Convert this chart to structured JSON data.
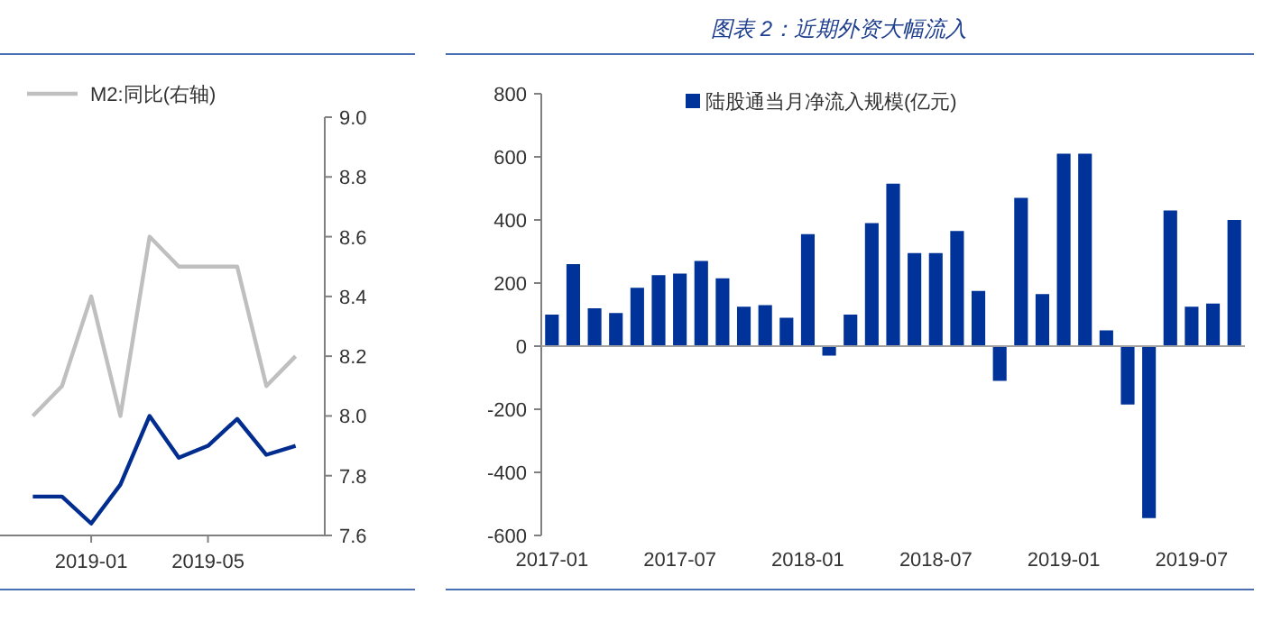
{
  "chart_data": [
    {
      "type": "line",
      "x": [
        "2018-11",
        "2018-12",
        "2019-01",
        "2019-02",
        "2019-03",
        "2019-04",
        "2019-05",
        "2019-06",
        "2019-07",
        "2019-08"
      ],
      "series": [
        {
          "name": "M2:同比(右轴)",
          "color": "#bfbfbf",
          "axis": "y2",
          "values": [
            8.0,
            8.1,
            8.4,
            8.0,
            8.6,
            8.5,
            8.5,
            8.5,
            8.1,
            8.2
          ]
        },
        {
          "color": "#002d8f",
          "axis": "y2",
          "values": [
            7.73,
            7.73,
            7.64,
            7.77,
            8.0,
            7.86,
            7.9,
            7.99,
            7.87,
            7.9
          ]
        }
      ],
      "xlim": [
        "2018-10",
        "2019-09"
      ],
      "xticks": [
        {
          "value": "2019-01",
          "label": "2019-01"
        },
        {
          "value": "2019-05",
          "label": "2019-05"
        }
      ],
      "y2lim": [
        7.6,
        9.0
      ],
      "y2ticks": [
        7.6,
        7.8,
        {
          "value": 8,
          "label": "8.0"
        },
        8.2,
        8.4,
        8.6,
        8.8,
        {
          "value": 9,
          "label": "9.0"
        }
      ],
      "legend": "top",
      "line_style": "solid"
    },
    {
      "type": "bar",
      "title": "图表 2：近期外资大幅流入",
      "categories": [
        "2017-01",
        null,
        null,
        null,
        null,
        null,
        "2017-07",
        null,
        null,
        null,
        null,
        null,
        "2018-01",
        null,
        null,
        null,
        null,
        null,
        "2018-07",
        null,
        null,
        null,
        null,
        null,
        "2019-01",
        null,
        null,
        null,
        null,
        null,
        "2019-07",
        null,
        null
      ],
      "series": [
        {
          "name": "陆股通当月净流入规模(亿元)",
          "color": "#003399",
          "values": [
            100,
            260,
            120,
            105,
            185,
            225,
            230,
            270,
            215,
            125,
            130,
            90,
            355,
            -30,
            100,
            390,
            515,
            295,
            295,
            365,
            175,
            -110,
            470,
            165,
            610,
            610,
            50,
            -185,
            -545,
            430,
            125,
            135,
            400
          ]
        }
      ],
      "ylim": [
        -600,
        800
      ],
      "yticks": [
        -600,
        -400,
        -200,
        0,
        200,
        400,
        600,
        800
      ],
      "legend": "top"
    }
  ]
}
